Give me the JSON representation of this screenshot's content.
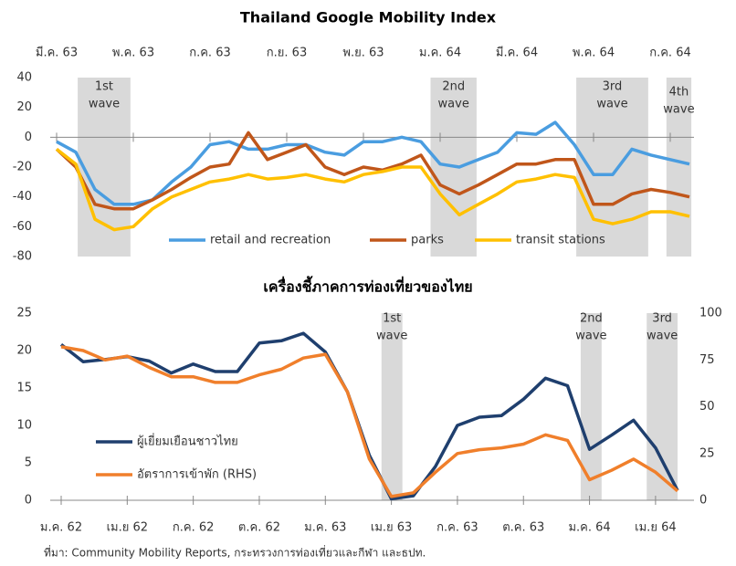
{
  "chart_data": [
    {
      "type": "line",
      "title": "Thailand Google Mobility Index",
      "categories": [
        "มี.ค. 63",
        null,
        null,
        null,
        "พ.ค. 63",
        null,
        null,
        null,
        "ก.ค. 63",
        null,
        null,
        null,
        "ก.ย. 63",
        null,
        null,
        null,
        "พ.ย. 63",
        null,
        null,
        null,
        "ม.ค. 64",
        null,
        null,
        null,
        "มี.ค. 64",
        null,
        null,
        null,
        "พ.ค. 64",
        null,
        null,
        null,
        "ก.ค. 64",
        null
      ],
      "series": [
        {
          "name": "retail and recreation",
          "color": "#4a9de0",
          "values": [
            -3,
            -10,
            -35,
            -45,
            -45,
            -42,
            -30,
            -20,
            -5,
            -3,
            -8,
            -8,
            -5,
            -5,
            -10,
            -12,
            -3,
            -3,
            0,
            -3,
            -18,
            -20,
            -15,
            -10,
            3,
            2,
            10,
            -5,
            -25,
            -25,
            -8,
            -12,
            -15,
            -18
          ]
        },
        {
          "name": "parks",
          "color": "#c0561a",
          "values": [
            -8,
            -20,
            -45,
            -48,
            -48,
            -42,
            -35,
            -27,
            -20,
            -18,
            3,
            -15,
            -10,
            -5,
            -20,
            -25,
            -20,
            -22,
            -18,
            -12,
            -32,
            -38,
            -32,
            -25,
            -18,
            -18,
            -15,
            -15,
            -45,
            -45,
            -38,
            -35,
            -37,
            -40
          ]
        },
        {
          "name": "transit stations",
          "color": "#ffc000",
          "values": [
            -8,
            -18,
            -55,
            -62,
            -60,
            -48,
            -40,
            -35,
            -30,
            -28,
            -25,
            -28,
            -27,
            -25,
            -28,
            -30,
            -25,
            -23,
            -20,
            -20,
            -38,
            -52,
            -45,
            -38,
            -30,
            -28,
            -25,
            -27,
            -55,
            -58,
            -55,
            -50,
            -50,
            -53
          ]
        }
      ],
      "ylim": [
        -80,
        40
      ],
      "yticks": [
        -80,
        -60,
        -40,
        -20,
        0,
        20,
        40
      ],
      "waves": [
        {
          "label": [
            "1st",
            "wave"
          ],
          "x0": 1.1,
          "x1": 3.85
        },
        {
          "label": [
            "2nd",
            "wave"
          ],
          "x0": 19.5,
          "x1": 21.9
        },
        {
          "label": [
            "3rd",
            "wave"
          ],
          "x0": 27.1,
          "x1": 30.85
        },
        {
          "label": [
            "4th",
            "wave"
          ],
          "x0": 31.8,
          "x1": 33.1
        }
      ],
      "band_color": "#d9d9d9"
    },
    {
      "type": "line",
      "title": "เครื่องชี้ภาคการท่องเที่ยวของไทย",
      "categories": [
        "ม.ค. 62",
        null,
        null,
        "เม.ย 62",
        null,
        null,
        "ก.ค. 62",
        null,
        null,
        "ต.ค. 62",
        null,
        null,
        "ม.ค. 63",
        null,
        null,
        "เม.ย 63",
        null,
        null,
        "ก.ค. 63",
        null,
        null,
        "ต.ค. 63",
        null,
        null,
        "ม.ค. 64",
        null,
        null,
        "เม.ย 64",
        null
      ],
      "series": [
        {
          "name": "ผู้เยี่ยมเยือนชาวไทย",
          "color": "#1f3f6e",
          "values": [
            20.8,
            18.5,
            18.8,
            19.2,
            18.6,
            17.0,
            18.2,
            17.2,
            17.2,
            21.0,
            21.3,
            22.3,
            19.8,
            14.5,
            6.0,
            0.2,
            0.6,
            4.5,
            10.0,
            11.1,
            11.3,
            13.5,
            16.3,
            15.3,
            6.8,
            8.7,
            10.7,
            7.0,
            1.3
          ]
        },
        {
          "name": "อัตราการเข้าพัก (RHS)",
          "color": "#f07f2b",
          "axis": "y2",
          "values": [
            82,
            80,
            75,
            77,
            71,
            66,
            66,
            63,
            63,
            67,
            70,
            76,
            78,
            58,
            22,
            2,
            4,
            15,
            25,
            27,
            28,
            30,
            35,
            32,
            11,
            16,
            22,
            15,
            5
          ]
        }
      ],
      "ylim": [
        0,
        25
      ],
      "yticks": [
        0,
        5,
        10,
        15,
        20,
        25
      ],
      "y2lim": [
        0,
        100
      ],
      "y2ticks": [
        0,
        25,
        50,
        75,
        100
      ],
      "waves": [
        {
          "label": [
            "1st",
            "wave"
          ],
          "x0": 14.55,
          "x1": 15.5
        },
        {
          "label": [
            "2nd",
            "wave"
          ],
          "x0": 23.6,
          "x1": 24.55
        },
        {
          "label": [
            "3rd",
            "wave"
          ],
          "x0": 26.6,
          "x1": 28
        }
      ],
      "band_color": "#d9d9d9"
    }
  ],
  "source": "ที่มา: Community Mobility Reports, กระทรวงการท่องเที่ยวและกีฬา และธปท."
}
